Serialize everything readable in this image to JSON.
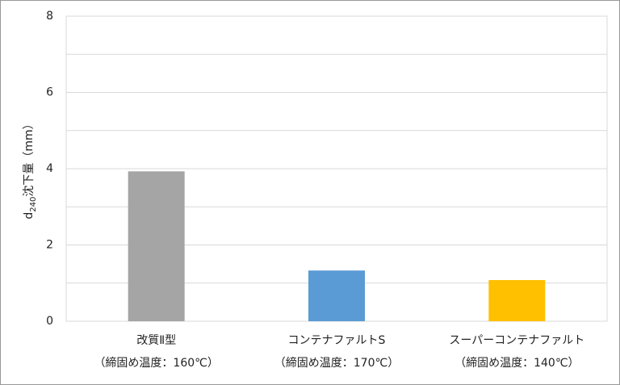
{
  "chart_data": {
    "type": "bar",
    "ylabel": [
      "d",
      "240",
      "沈下量（mm）"
    ],
    "categories": [
      [
        "改質Ⅱ型",
        "（締固め温度：160℃）"
      ],
      [
        "コンテナファルトS",
        "（締固め温度：170℃）"
      ],
      [
        "スーパーコンテナファルト",
        "（締固め温度：140℃）"
      ]
    ],
    "values": [
      3.93,
      1.33,
      1.08
    ],
    "colors": [
      "#a5a5a5",
      "#5b9bd5",
      "#ffc000"
    ],
    "ylim": [
      0,
      8
    ],
    "yticks": [
      0,
      2,
      4,
      6,
      8
    ],
    "minor_yticks": [
      1,
      3,
      5,
      7
    ],
    "grid": true
  }
}
